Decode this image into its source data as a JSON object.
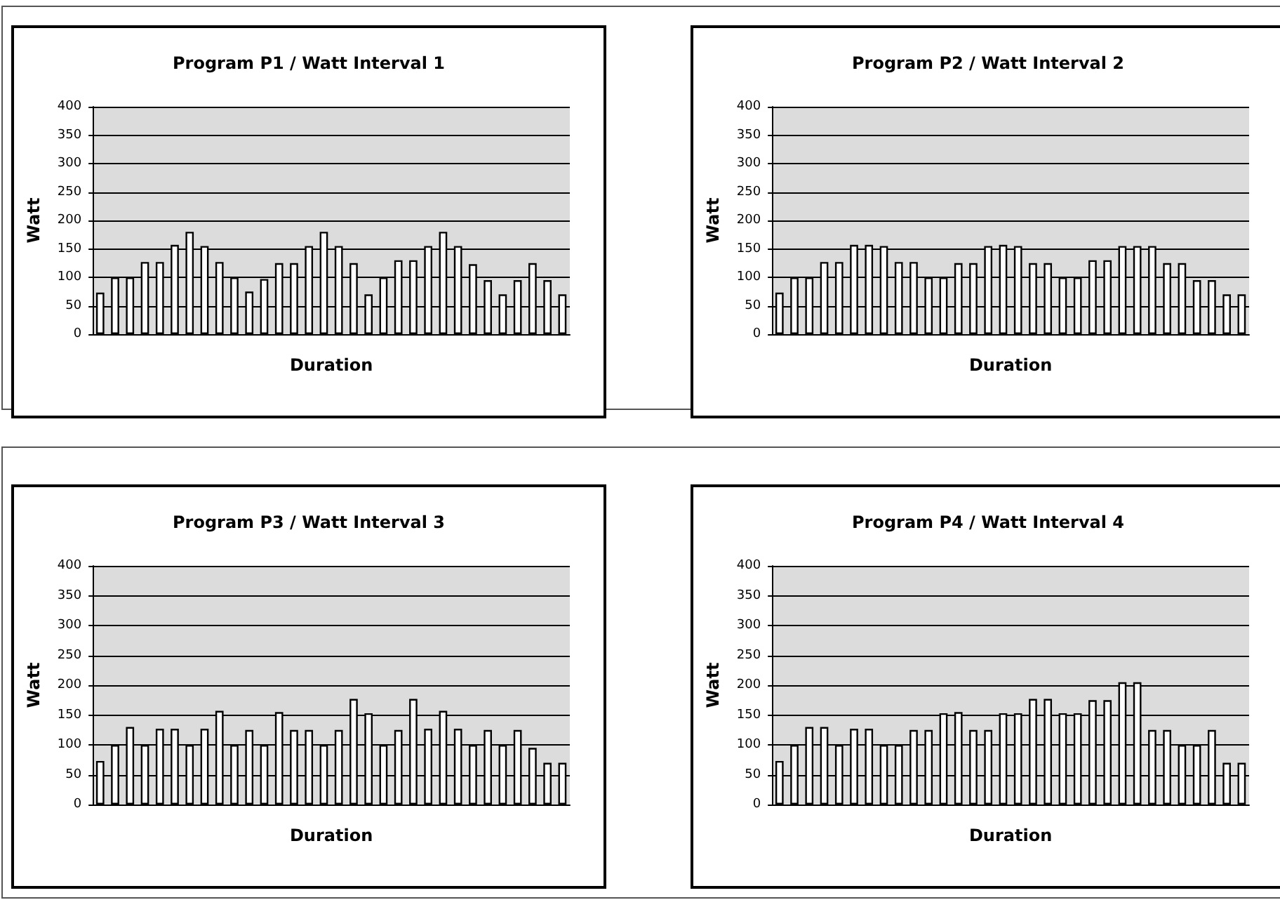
{
  "chart_data": [
    {
      "type": "bar",
      "title": "Program P1 / Watt Interval 1",
      "xlabel": "Duration",
      "ylabel": "Watt",
      "color": "#ffffff",
      "ylim": [
        0,
        400
      ],
      "yticks": [
        0,
        50,
        100,
        150,
        200,
        250,
        300,
        350,
        400
      ],
      "grid": "y",
      "tick_labels": "y",
      "categories": [
        null,
        null,
        null,
        null,
        null,
        null,
        null,
        null,
        null,
        null,
        null,
        null,
        null,
        null,
        null,
        null,
        null,
        null,
        null,
        null,
        null,
        null,
        null,
        null,
        null,
        null,
        null,
        null,
        null,
        null,
        null,
        null
      ],
      "values": [
        73,
        100,
        100,
        127,
        127,
        157,
        180,
        155,
        127,
        100,
        75,
        97,
        125,
        125,
        155,
        180,
        155,
        125,
        70,
        100,
        130,
        130,
        155,
        180,
        155,
        123,
        95,
        70,
        95,
        125,
        95,
        70
      ]
    },
    {
      "type": "bar",
      "title": "Program P2 / Watt Interval 2",
      "xlabel": "Duration",
      "ylabel": "Watt",
      "color": "#ffffff",
      "ylim": [
        0,
        400
      ],
      "yticks": [
        0,
        50,
        100,
        150,
        200,
        250,
        300,
        350,
        400
      ],
      "grid": "y",
      "tick_labels": "y",
      "categories": [
        null,
        null,
        null,
        null,
        null,
        null,
        null,
        null,
        null,
        null,
        null,
        null,
        null,
        null,
        null,
        null,
        null,
        null,
        null,
        null,
        null,
        null,
        null,
        null,
        null,
        null,
        null,
        null,
        null,
        null,
        null,
        null
      ],
      "values": [
        73,
        100,
        100,
        127,
        127,
        157,
        157,
        155,
        127,
        127,
        100,
        100,
        125,
        125,
        155,
        157,
        155,
        125,
        125,
        100,
        100,
        130,
        130,
        155,
        155,
        155,
        125,
        125,
        95,
        95,
        70,
        70
      ]
    },
    {
      "type": "bar",
      "title": "Program P3 / Watt Interval 3",
      "xlabel": "Duration",
      "ylabel": "Watt",
      "color": "#ffffff",
      "ylim": [
        0,
        400
      ],
      "yticks": [
        0,
        50,
        100,
        150,
        200,
        250,
        300,
        350,
        400
      ],
      "grid": "y",
      "tick_labels": "y",
      "categories": [
        null,
        null,
        null,
        null,
        null,
        null,
        null,
        null,
        null,
        null,
        null,
        null,
        null,
        null,
        null,
        null,
        null,
        null,
        null,
        null,
        null,
        null,
        null,
        null,
        null,
        null,
        null,
        null,
        null,
        null,
        null,
        null
      ],
      "values": [
        73,
        100,
        130,
        100,
        127,
        127,
        100,
        127,
        157,
        100,
        125,
        100,
        155,
        125,
        125,
        100,
        125,
        177,
        153,
        100,
        125,
        177,
        127,
        157,
        127,
        100,
        125,
        100,
        125,
        95,
        70,
        70
      ]
    },
    {
      "type": "bar",
      "title": "Program P4 / Watt Interval 4",
      "xlabel": "Duration",
      "ylabel": "Watt",
      "color": "#ffffff",
      "ylim": [
        0,
        400
      ],
      "yticks": [
        0,
        50,
        100,
        150,
        200,
        250,
        300,
        350,
        400
      ],
      "grid": "y",
      "tick_labels": "y",
      "categories": [
        null,
        null,
        null,
        null,
        null,
        null,
        null,
        null,
        null,
        null,
        null,
        null,
        null,
        null,
        null,
        null,
        null,
        null,
        null,
        null,
        null,
        null,
        null,
        null,
        null,
        null,
        null,
        null,
        null,
        null,
        null,
        null
      ],
      "values": [
        73,
        100,
        130,
        130,
        100,
        127,
        127,
        100,
        100,
        125,
        125,
        153,
        155,
        125,
        125,
        153,
        153,
        177,
        177,
        153,
        153,
        175,
        175,
        205,
        205,
        125,
        125,
        100,
        100,
        125,
        70,
        70
      ]
    }
  ]
}
